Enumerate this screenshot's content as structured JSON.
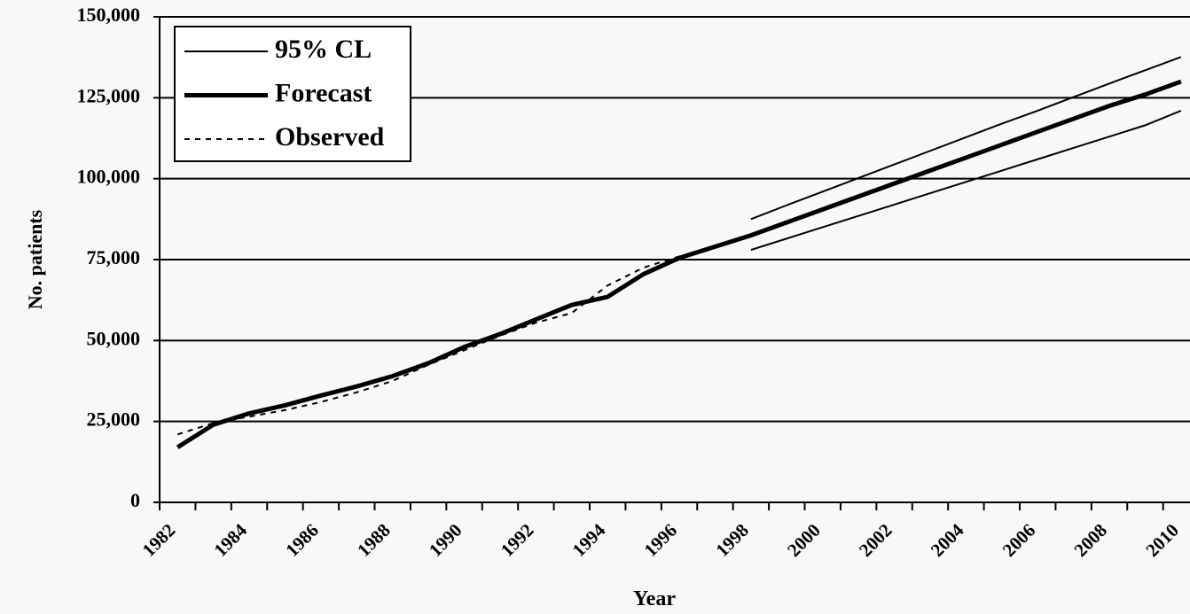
{
  "chart_data": {
    "type": "line",
    "x_label": "Year",
    "y_label": "No. patients",
    "x": [
      1982.5,
      1983.5,
      1984.5,
      1985.5,
      1986.5,
      1987.5,
      1988.5,
      1989.5,
      1990.5,
      1991.5,
      1992.5,
      1993.5,
      1994.5,
      1995.5,
      1996.5,
      1997.5,
      1998.5,
      1999.5,
      2000.5,
      2001.5,
      2002.5,
      2003.5,
      2004.5,
      2005.5,
      2006.5,
      2007.5,
      2008.5,
      2009.5,
      2010.5
    ],
    "series": [
      {
        "name": "95% CL",
        "color": "#000000",
        "width": 2,
        "dashed": false,
        "values": [
          null,
          null,
          null,
          null,
          null,
          null,
          null,
          null,
          null,
          null,
          null,
          null,
          null,
          null,
          null,
          null,
          87500,
          91800,
          96000,
          100200,
          104400,
          108600,
          112800,
          117000,
          121000,
          125200,
          129400,
          133500,
          137600
        ],
        "lower": [
          null,
          null,
          null,
          null,
          null,
          null,
          null,
          null,
          null,
          null,
          null,
          null,
          null,
          null,
          null,
          null,
          78000,
          81500,
          85000,
          88500,
          92000,
          95500,
          99000,
          102500,
          106000,
          109500,
          113000,
          116500,
          121000
        ]
      },
      {
        "name": "Forecast",
        "color": "#000000",
        "width": 5,
        "dashed": false,
        "values": [
          17000,
          24000,
          27500,
          30000,
          33000,
          35800,
          39000,
          43000,
          48000,
          52000,
          56500,
          61000,
          63500,
          70500,
          75500,
          79000,
          82500,
          86500,
          90500,
          94500,
          98500,
          102500,
          106500,
          110500,
          114500,
          118500,
          122500,
          126000,
          130000
        ]
      },
      {
        "name": "Observed",
        "color": "#000000",
        "width": 2,
        "dashed": true,
        "values": [
          21000,
          24500,
          26500,
          28500,
          31000,
          34000,
          37500,
          42500,
          47000,
          51500,
          55500,
          58500,
          67000,
          72500,
          76000,
          null,
          null,
          null,
          null,
          null,
          null,
          null,
          null,
          null,
          null,
          null,
          null,
          null,
          null
        ]
      }
    ],
    "xlim": [
      1982,
      2010.75
    ],
    "xticks": [
      1982,
      1984,
      1986,
      1988,
      1990,
      1992,
      1994,
      1996,
      1998,
      2000,
      2002,
      2004,
      2006,
      2008,
      2010
    ],
    "ylim": [
      0,
      150000
    ],
    "yticks": [
      0,
      {
        "value": 25000,
        "label": "25,000"
      },
      {
        "value": 50000,
        "label": "50,000"
      },
      {
        "value": 75000,
        "label": "75,000"
      },
      {
        "value": 100000,
        "label": "100,000"
      },
      {
        "value": 125000,
        "label": "125,000"
      },
      {
        "value": 150000,
        "label": "150,000"
      }
    ],
    "grid": true,
    "legend": "top-left"
  }
}
